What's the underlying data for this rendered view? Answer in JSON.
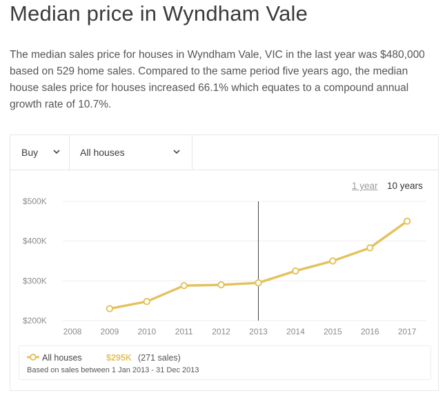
{
  "page": {
    "title": "Median price in Wyndham Vale",
    "summary": "The median sales price for houses in Wyndham Vale, VIC in the last year was $480,000 based on 529 home sales. Compared to the same period five years ago, the median house sales price for houses increased 66.1% which equates to a compound annual growth rate of 10.7%."
  },
  "controls": {
    "transaction_type": "Buy",
    "property_type": "All houses",
    "range_1y": "1 year",
    "range_10y": "10 years",
    "selected_range": "10 years"
  },
  "chart_data": {
    "type": "line",
    "title": "",
    "xlabel": "",
    "ylabel": "",
    "x": [
      "2008",
      "2009",
      "2010",
      "2011",
      "2012",
      "2013",
      "2014",
      "2015",
      "2016",
      "2017"
    ],
    "series": [
      {
        "name": "All houses",
        "values": [
          null,
          230000,
          248000,
          288000,
          290000,
          295000,
          325000,
          350000,
          383000,
          450000
        ]
      }
    ],
    "ylim": [
      200000,
      500000
    ],
    "yticks": [
      200000,
      300000,
      400000,
      500000
    ],
    "ytick_labels": [
      "$200K",
      "$300K",
      "$400K",
      "$500K"
    ],
    "grid": true,
    "highlight_x": "2013",
    "line_color": "#e3c25e"
  },
  "legend": {
    "series_name": "All houses",
    "value": "$295K",
    "sales": "(271 sales)",
    "note": "Based on sales between 1 Jan 2013 - 31 Dec 2013"
  }
}
